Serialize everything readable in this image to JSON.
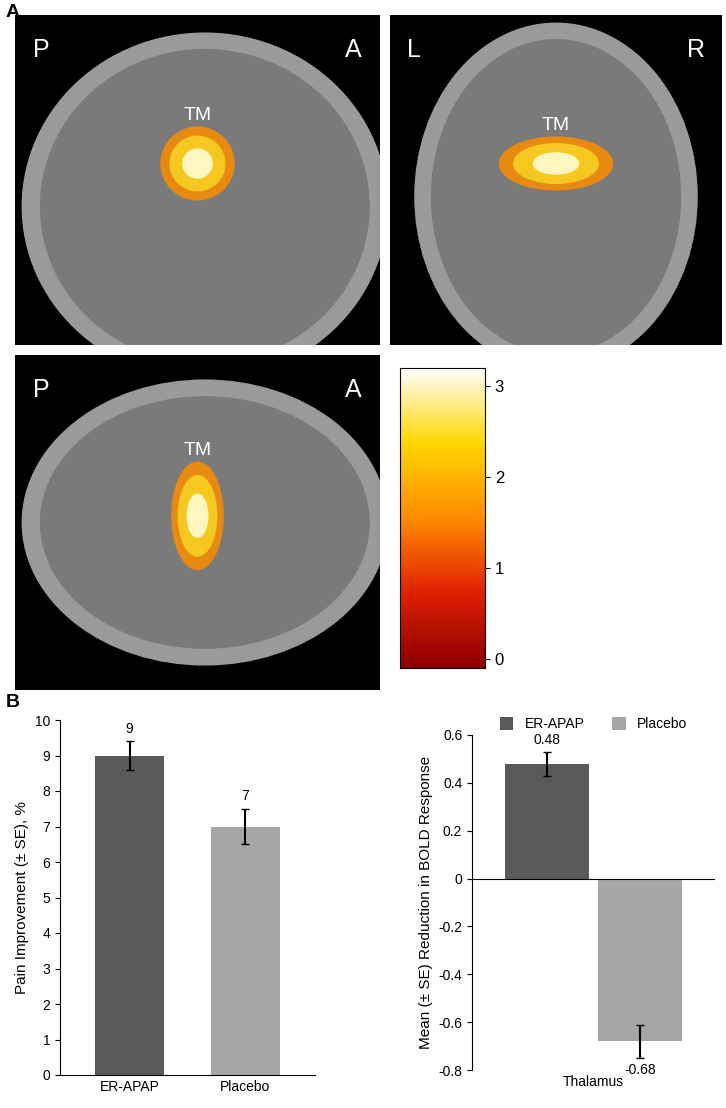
{
  "panel_labels": [
    "A",
    "B"
  ],
  "brain_images": [
    {
      "corner_labels": [
        "P",
        "A"
      ],
      "region_label": "TM"
    },
    {
      "corner_labels": [
        "L",
        "R"
      ],
      "region_label": "TM"
    },
    {
      "corner_labels": [
        "P",
        "A"
      ],
      "region_label": "TM"
    }
  ],
  "colorbar": {
    "range": [
      -0.1,
      3.2
    ],
    "ticks": [
      0,
      1,
      2,
      3
    ]
  },
  "chart_data": [
    {
      "type": "bar",
      "categories": [
        "ER-APAP",
        "Placebo"
      ],
      "values": [
        9,
        7
      ],
      "errors": [
        0.4,
        0.5
      ],
      "colors": [
        "#595959",
        "#a6a6a6"
      ],
      "ylabel": "Pain Improvement (± SE), %",
      "ylim": [
        0,
        10
      ],
      "yticks": [
        0,
        1,
        2,
        3,
        4,
        5,
        6,
        7,
        8,
        9,
        10
      ],
      "data_labels": true
    },
    {
      "type": "bar",
      "categories": [
        "Thalamus"
      ],
      "series": [
        {
          "name": "ER-APAP",
          "color": "#595959",
          "values": [
            0.48
          ],
          "errors": [
            0.05
          ]
        },
        {
          "name": "Placebo",
          "color": "#a6a6a6",
          "values": [
            -0.68
          ],
          "errors": [
            0.07
          ]
        }
      ],
      "ylabel": "Mean (± SE) Reduction in BOLD Response",
      "ylim": [
        -0.8,
        0.6
      ],
      "yticks": [
        -0.8,
        -0.6,
        -0.4,
        -0.2,
        0,
        0.2,
        0.4,
        0.6
      ],
      "legend": "upper center",
      "data_labels": true
    }
  ]
}
